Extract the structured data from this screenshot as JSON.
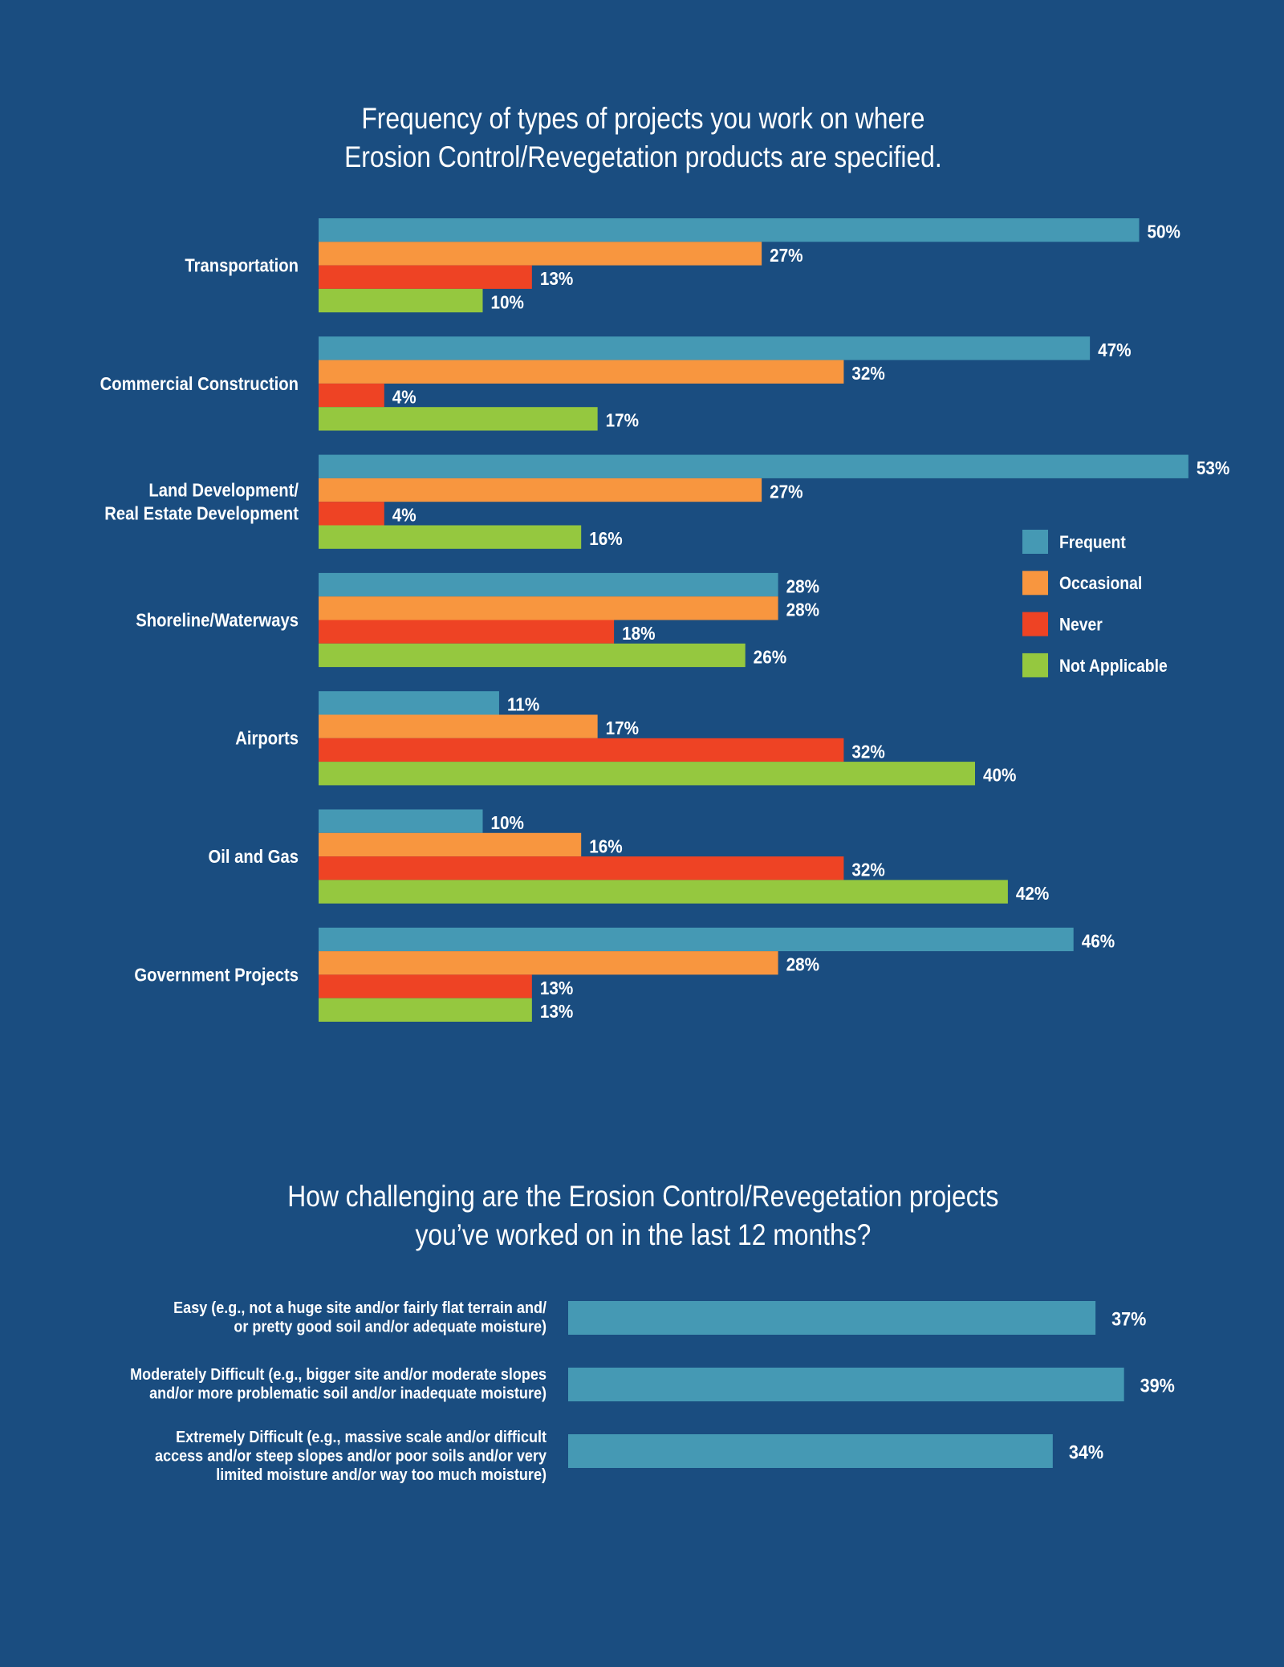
{
  "colors": {
    "background": "#1a4d80",
    "frequent": "#4599b4",
    "occasional": "#f8963f",
    "never": "#ee4324",
    "not_applicable": "#95c83f",
    "text": "#ffffff"
  },
  "chart_data": [
    {
      "type": "bar",
      "orientation": "horizontal",
      "title_lines": [
        "Frequency of types of projects you work on where",
        "Erosion Control/Revegetation products are specified."
      ],
      "categories": [
        [
          "Transportation"
        ],
        [
          "Commercial Construction"
        ],
        [
          "Land Development/",
          "Real Estate Development"
        ],
        [
          "Shoreline/Waterways"
        ],
        [
          "Airports"
        ],
        [
          "Oil and Gas"
        ],
        [
          "Government Projects"
        ]
      ],
      "series": [
        {
          "name": "Frequent",
          "values": [
            50,
            47,
            53,
            28,
            11,
            10,
            46
          ],
          "labels": [
            "50%",
            "47%",
            "53%",
            "28%",
            "11%",
            "10%",
            "46%"
          ]
        },
        {
          "name": "Occasional",
          "values": [
            27,
            32,
            27,
            28,
            17,
            16,
            28
          ],
          "labels": [
            "27%",
            "32%",
            "27%",
            "28%",
            "17%",
            "16%",
            "28%"
          ]
        },
        {
          "name": "Never",
          "values": [
            13,
            4,
            4,
            18,
            32,
            32,
            13
          ],
          "labels": [
            "13%",
            "4%",
            "4%",
            "18%",
            "32%",
            "32%",
            "13%"
          ]
        },
        {
          "name": "Not Applicable",
          "values": [
            10,
            17,
            16,
            26,
            40,
            42,
            13
          ],
          "labels": [
            "10%",
            "17%",
            "16%",
            "26%",
            "40%",
            "42%",
            "13%"
          ]
        }
      ],
      "unit": "%",
      "grid": false,
      "legend_position": "right"
    },
    {
      "type": "bar",
      "orientation": "horizontal",
      "title_lines": [
        "How challenging are the Erosion Control/Revegetation projects",
        "you’ve worked on in the last 12 months?"
      ],
      "categories": [
        [
          "Easy (e.g., not a huge site and/or fairly flat terrain and/",
          "or pretty good soil and/or adequate moisture)"
        ],
        [
          "Moderately Difficult (e.g., bigger site and/or moderate slopes",
          "and/or more problematic soil and/or inadequate moisture)"
        ],
        [
          "Extremely Difficult (e.g., massive scale and/or difficult",
          "access and/or steep slopes and/or poor soils and/or very",
          "limited moisture and/or way too much moisture)"
        ]
      ],
      "series": [
        {
          "values": [
            37,
            39,
            34
          ],
          "labels": [
            "37%",
            "39%",
            "34%"
          ]
        }
      ],
      "unit": "%",
      "grid": false
    }
  ]
}
